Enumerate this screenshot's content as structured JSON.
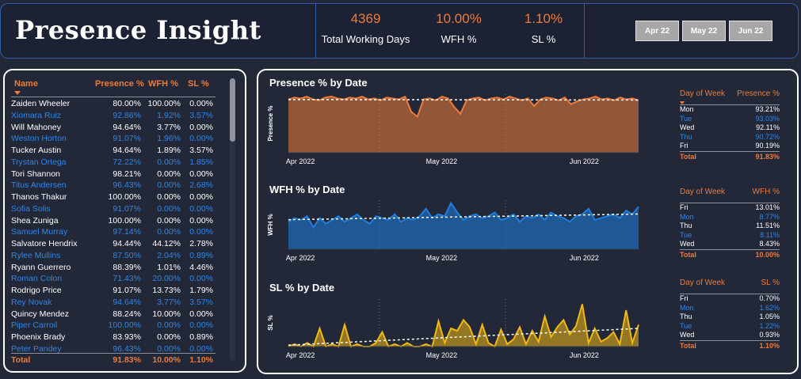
{
  "header": {
    "title": "Presence Insight"
  },
  "kpis": [
    {
      "value": "4369",
      "label": "Total Working Days"
    },
    {
      "value": "10.00%",
      "label": "WFH %"
    },
    {
      "value": "1.10%",
      "label": "SL %"
    }
  ],
  "slicers": [
    "Apr 22",
    "May 22",
    "Jun 22"
  ],
  "table": {
    "headers": {
      "name": "Name",
      "presence": "Presence %",
      "wfh": "WFH %",
      "sl": "SL %"
    },
    "rows": [
      {
        "name": "Zaiden Wheeler",
        "presence": "80.00%",
        "wfh": "100.00%",
        "sl": "0.00%"
      },
      {
        "name": "Xiomara Ruiz",
        "presence": "92.86%",
        "wfh": "1.92%",
        "sl": "3.57%"
      },
      {
        "name": "Will Mahoney",
        "presence": "94.64%",
        "wfh": "3.77%",
        "sl": "0.00%"
      },
      {
        "name": "Weston Horton",
        "presence": "91.07%",
        "wfh": "1.96%",
        "sl": "0.00%"
      },
      {
        "name": "Tucker Austin",
        "presence": "94.64%",
        "wfh": "1.89%",
        "sl": "3.57%"
      },
      {
        "name": "Trystan Ortega",
        "presence": "72.22%",
        "wfh": "0.00%",
        "sl": "1.85%"
      },
      {
        "name": "Tori Shannon",
        "presence": "98.21%",
        "wfh": "0.00%",
        "sl": "0.00%"
      },
      {
        "name": "Titus Andersen",
        "presence": "96.43%",
        "wfh": "0.00%",
        "sl": "2.68%"
      },
      {
        "name": "Thanos Thakur",
        "presence": "100.00%",
        "wfh": "0.00%",
        "sl": "0.00%"
      },
      {
        "name": "Sofia Solis",
        "presence": "91.07%",
        "wfh": "0.00%",
        "sl": "0.00%"
      },
      {
        "name": "Shea Zuniga",
        "presence": "100.00%",
        "wfh": "0.00%",
        "sl": "0.00%"
      },
      {
        "name": "Samuel Murray",
        "presence": "97.14%",
        "wfh": "0.00%",
        "sl": "0.00%"
      },
      {
        "name": "Salvatore Hendrix",
        "presence": "94.44%",
        "wfh": "44.12%",
        "sl": "2.78%"
      },
      {
        "name": "Rylee Mullins",
        "presence": "87.50%",
        "wfh": "2.04%",
        "sl": "0.89%"
      },
      {
        "name": "Ryann Guerrero",
        "presence": "88.39%",
        "wfh": "1.01%",
        "sl": "4.46%"
      },
      {
        "name": "Roman Colon",
        "presence": "71.43%",
        "wfh": "20.00%",
        "sl": "0.00%"
      },
      {
        "name": "Rodrigo Price",
        "presence": "91.07%",
        "wfh": "13.73%",
        "sl": "1.79%"
      },
      {
        "name": "Rey Novak",
        "presence": "94.64%",
        "wfh": "3.77%",
        "sl": "3.57%"
      },
      {
        "name": "Quincy Mendez",
        "presence": "88.24%",
        "wfh": "10.00%",
        "sl": "0.00%"
      },
      {
        "name": "Piper Carroil",
        "presence": "100.00%",
        "wfh": "0.00%",
        "sl": "0.00%"
      },
      {
        "name": "Phoenix Brady",
        "presence": "83.93%",
        "wfh": "0.00%",
        "sl": "0.89%"
      },
      {
        "name": "Peter Pandey",
        "presence": "96.43%",
        "wfh": "0.00%",
        "sl": "0.00%"
      }
    ],
    "total": {
      "name": "Total",
      "presence": "91.83%",
      "wfh": "10.00%",
      "sl": "1.10%"
    }
  },
  "charts": {
    "presence": {
      "title": "Presence % by Date",
      "ylabel": "Presence %"
    },
    "wfh": {
      "title": "WFH % by Date",
      "ylabel": "WFH %"
    },
    "sl": {
      "title": "SL % by Date",
      "ylabel": "SL %"
    }
  },
  "colors": {
    "presence": "#ee7b3a",
    "wfh": "#1e7fe0",
    "sl": "#f0b814",
    "accent": "#ee7b3a",
    "link": "#2e86e8"
  },
  "chart_data": [
    {
      "type": "area",
      "title": "Presence % by Date",
      "ylabel": "Presence %",
      "x_ticks": [
        "Apr 2022",
        "May 2022",
        "Jun 2022"
      ],
      "trendline": true,
      "values": [
        93,
        95,
        94,
        96,
        93,
        92,
        95,
        96,
        94,
        93,
        95,
        94,
        96,
        93,
        94,
        92,
        95,
        94,
        93,
        96,
        80,
        75,
        93,
        94,
        92,
        96,
        94,
        85,
        78,
        92,
        94,
        95,
        92,
        94,
        95,
        93,
        96,
        94,
        92,
        94,
        86,
        93,
        95,
        94,
        92,
        95,
        88,
        91,
        93,
        94,
        96,
        93,
        94,
        92,
        95,
        93,
        94,
        92
      ]
    },
    {
      "type": "area",
      "title": "WFH % by Date",
      "ylabel": "WFH %",
      "x_ticks": [
        "Apr 2022",
        "May 2022",
        "Jun 2022"
      ],
      "trendline": true,
      "values": [
        8,
        10,
        9,
        11,
        5,
        10,
        7,
        9,
        11,
        8,
        10,
        12,
        9,
        7,
        11,
        10,
        9,
        12,
        8,
        10,
        9,
        11,
        15,
        10,
        12,
        11,
        18,
        13,
        9,
        11,
        12,
        10,
        11,
        13,
        9,
        10,
        12,
        8,
        11,
        10,
        12,
        9,
        13,
        11,
        10,
        8,
        11,
        12,
        15,
        9,
        10,
        11,
        12,
        10,
        14,
        12,
        16
      ]
    },
    {
      "type": "area",
      "title": "SL % by Date",
      "ylabel": "SL %",
      "x_ticks": [
        "Apr 2022",
        "May 2022",
        "Jun 2022"
      ],
      "trendline": true,
      "values": [
        0,
        0.2,
        0,
        0.3,
        0,
        1.5,
        0,
        0.2,
        0,
        1.8,
        0,
        0.2,
        0,
        0,
        0.3,
        1.2,
        0,
        0.2,
        0,
        0.3,
        0,
        0,
        0.2,
        0,
        2.1,
        0.3,
        1.5,
        1.3,
        2.2,
        1.6,
        0.2,
        1.8,
        0.3,
        0,
        1.4,
        0.2,
        0.6,
        1.6,
        0.2,
        1.3,
        0.4,
        2.5,
        0.8,
        1.6,
        2.2,
        1.0,
        1.7,
        3.5,
        0.3,
        1.5,
        0.4,
        0.7,
        1.2,
        0.2,
        3.0,
        0.3,
        1.8
      ]
    }
  ],
  "dow_tables": [
    {
      "headers": [
        "Day of Week",
        "Presence %"
      ],
      "rows": [
        {
          "day": "Mon",
          "val": "93.21%"
        },
        {
          "day": "Tue",
          "val": "93.03%"
        },
        {
          "day": "Wed",
          "val": "92.11%"
        },
        {
          "day": "Thu",
          "val": "90.72%"
        },
        {
          "day": "Fri",
          "val": "90.19%"
        }
      ],
      "total": {
        "day": "Total",
        "val": "91.83%"
      }
    },
    {
      "headers": [
        "Day of Week",
        "WFH %"
      ],
      "rows": [
        {
          "day": "Fri",
          "val": "13.01%"
        },
        {
          "day": "Mon",
          "val": "8.77%"
        },
        {
          "day": "Thu",
          "val": "11.51%"
        },
        {
          "day": "Tue",
          "val": "8.11%"
        },
        {
          "day": "Wed",
          "val": "8.43%"
        }
      ],
      "total": {
        "day": "Total",
        "val": "10.00%"
      }
    },
    {
      "headers": [
        "Day of Week",
        "SL %"
      ],
      "rows": [
        {
          "day": "Fri",
          "val": "0.70%"
        },
        {
          "day": "Mon",
          "val": "1.62%"
        },
        {
          "day": "Thu",
          "val": "1.05%"
        },
        {
          "day": "Tue",
          "val": "1.22%"
        },
        {
          "day": "Wed",
          "val": "0.93%"
        }
      ],
      "total": {
        "day": "Total",
        "val": "1.10%"
      }
    }
  ]
}
